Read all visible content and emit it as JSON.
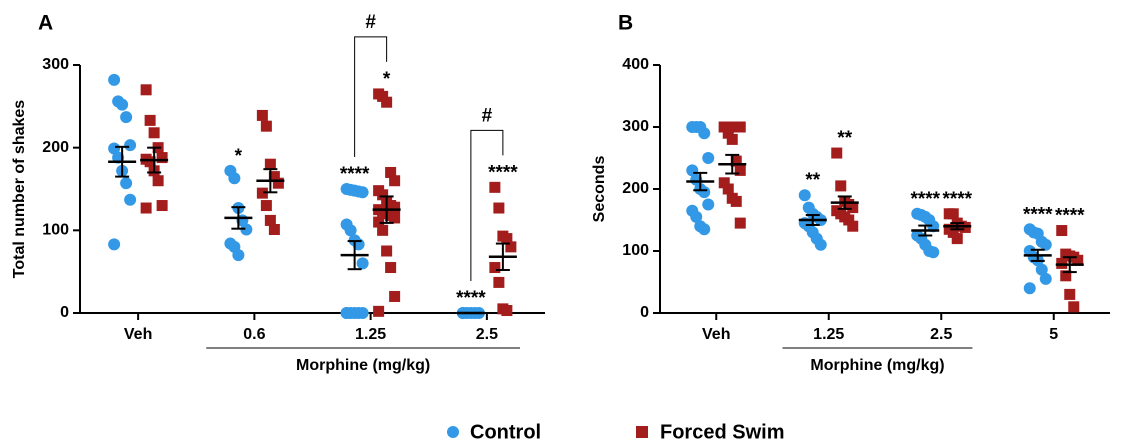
{
  "chart_data": [
    {
      "type": "dotplot",
      "panel": "A",
      "ylabel": "Total number of shakes",
      "xlabel": "Morphine (mg/kg)",
      "categories": [
        "Veh",
        "0.6",
        "1.25",
        "2.5"
      ],
      "ylim": [
        0,
        300
      ],
      "yticks": [
        0,
        100,
        200,
        300
      ],
      "series": [
        {
          "name": "Control",
          "color": "#3399e6",
          "marker": "circle",
          "values": [
            [
              282,
              256,
              252,
              237,
              203,
              199,
              188,
              172,
              157,
              137,
              83
            ],
            [
              172,
              163,
              127,
              112,
              101,
              84,
              80,
              70
            ],
            [
              150,
              149,
              148,
              147,
              146,
              107,
              100,
              88,
              83,
              60,
              0,
              0,
              0,
              0,
              0,
              0
            ],
            [
              0,
              0,
              0,
              0,
              0,
              0
            ]
          ],
          "means": [
            183,
            115,
            70,
            0
          ],
          "sems": [
            18,
            13,
            17,
            0
          ],
          "stars": [
            null,
            "*",
            "****",
            "****"
          ]
        },
        {
          "name": "Forced Swim",
          "color": "#a31d1d",
          "marker": "square",
          "values": [
            [
              270,
              233,
              218,
              200,
              188,
              186,
              183,
              172,
              160,
              130,
              127
            ],
            [
              239,
              226,
              180,
              165,
              157,
              145,
              130,
              112,
              101
            ],
            [
              265,
              262,
              255,
              170,
              160,
              148,
              143,
              135,
              130,
              128,
              125,
              123,
              120,
              118,
              115,
              110,
              100,
              75,
              55,
              20,
              2
            ],
            [
              152,
              127,
              93,
              90,
              80,
              55,
              37,
              5,
              3
            ]
          ],
          "means": [
            185,
            160,
            125,
            68
          ],
          "sems": [
            15,
            14,
            16,
            16
          ],
          "stars": [
            null,
            null,
            "*",
            "****"
          ]
        }
      ],
      "comparisons": [
        {
          "category": "1.25",
          "label": "#"
        },
        {
          "category": "2.5",
          "label": "#"
        }
      ]
    },
    {
      "type": "dotplot",
      "panel": "B",
      "ylabel": "Seconds",
      "xlabel": "Morphine  (mg/kg)",
      "categories": [
        "Veh",
        "1.25",
        "2.5",
        "5"
      ],
      "ylim": [
        0,
        400
      ],
      "yticks": [
        0,
        100,
        200,
        300,
        400
      ],
      "series": [
        {
          "color": "#3399e6",
          "marker": "circle",
          "values": [
            [
              300,
              300,
              300,
              290,
              250,
              230,
              215,
              200,
              195,
              175,
              165,
              155,
              140,
              135
            ],
            [
              190,
              170,
              160,
              155,
              150,
              145,
              140,
              130,
              120,
              110
            ],
            [
              160,
              158,
              155,
              150,
              140,
              125,
              120,
              110,
              100,
              98
            ],
            [
              135,
              130,
              128,
              115,
              110,
              100,
              90,
              85,
              70,
              55,
              40
            ]
          ],
          "means": [
            212,
            150,
            133,
            93
          ],
          "sems": [
            14,
            8,
            8,
            9
          ],
          "stars": [
            null,
            "**",
            "****",
            "****"
          ]
        },
        {
          "color": "#a31d1d",
          "marker": "square",
          "values": [
            [
              300,
              300,
              300,
              300,
              300,
              300,
              290,
              280,
              245,
              230,
              210,
              200,
              185,
              180,
              145
            ],
            [
              258,
              205,
              180,
              175,
              170,
              165,
              160,
              155,
              150,
              140
            ],
            [
              160,
              160,
              145,
              140,
              138,
              135,
              130,
              120
            ],
            [
              133,
              95,
              92,
              90,
              85,
              80,
              60,
              30,
              10
            ]
          ],
          "means": [
            240,
            178,
            140,
            78
          ],
          "sems": [
            15,
            10,
            5,
            12
          ],
          "stars": [
            null,
            "**",
            "****",
            "****"
          ]
        }
      ]
    }
  ]
}
